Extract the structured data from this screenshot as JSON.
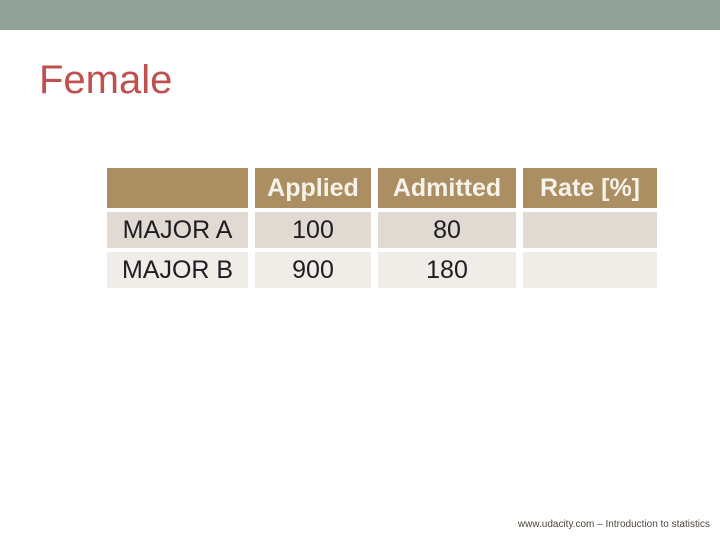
{
  "page": {
    "title": "Female",
    "footer": "www.udacity.com – Introduction to statistics"
  },
  "chart_data": {
    "type": "table",
    "title": "Female",
    "columns": [
      "",
      "Applied",
      "Admitted",
      "Rate [%]"
    ],
    "rows": [
      [
        "MAJOR A",
        "100",
        "80",
        ""
      ],
      [
        "MAJOR B",
        "900",
        "180",
        ""
      ]
    ],
    "notes": "Rate [%] column cells are empty in both data rows"
  },
  "colors": {
    "top_bar": "#93a299",
    "title_text": "#c0504d",
    "table_header_bg": "#ab8e61",
    "table_header_text": "#f7f3ea",
    "row_major_a_bg": "#e1dad2",
    "row_major_b_bg": "#f0ede8",
    "body_text": "#1e1d23",
    "footer_text": "#4c453d",
    "slide_background": "#ffffff"
  }
}
